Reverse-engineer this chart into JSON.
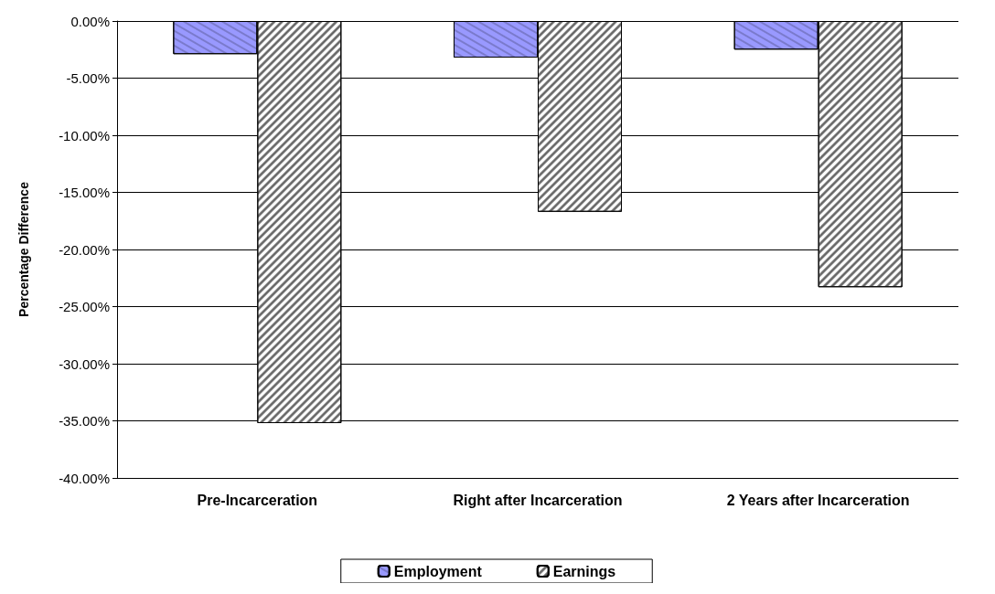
{
  "chart_data": {
    "type": "bar",
    "ylabel": "Percentage Difference",
    "categories": [
      "Pre-Incarceration",
      "Right after Incarceration",
      "2 Years after Incarceration"
    ],
    "series": [
      {
        "name": "Employment",
        "color": "#9999ff",
        "values": [
          -2.9,
          -3.2,
          -2.5
        ]
      },
      {
        "name": "Earnings",
        "color": "#ffffff",
        "values": [
          -35.2,
          -16.7,
          -23.3
        ]
      }
    ],
    "ylim": [
      -40,
      0
    ],
    "yticks": [
      {
        "value": -40,
        "label": "-40.00%"
      },
      {
        "value": -35,
        "label": "-35.00%"
      },
      {
        "value": -30,
        "label": "-30.00%"
      },
      {
        "value": -25,
        "label": "-25.00%"
      },
      {
        "value": -20,
        "label": "-20.00%"
      },
      {
        "value": -15,
        "label": "-15.00%"
      },
      {
        "value": -10,
        "label": "-10.00%"
      },
      {
        "value": -5,
        "label": "-5.00%"
      },
      {
        "value": 0,
        "label": "0.00%"
      }
    ],
    "grid": "y",
    "legend": "bottom"
  }
}
